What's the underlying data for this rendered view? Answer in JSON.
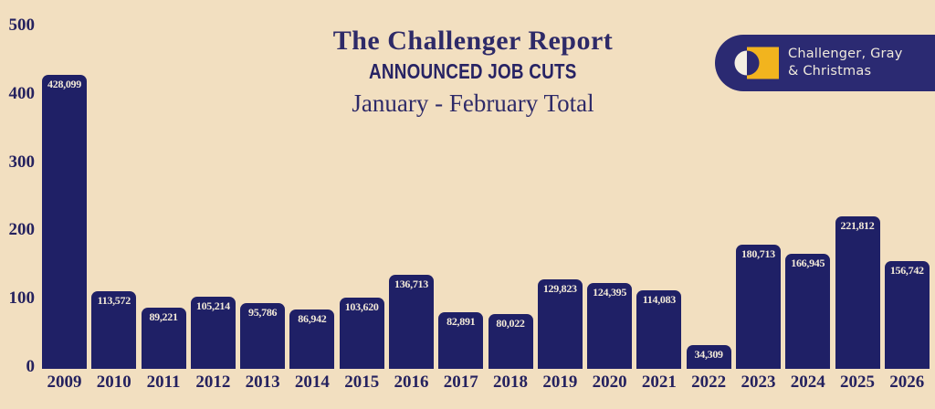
{
  "header": {
    "title": "The Challenger Report",
    "subtitle": "ANNOUNCED JOB CUTS",
    "period": "January - February Total"
  },
  "logo": {
    "company_line1": "Challenger, Gray",
    "company_line2": "& Christmas",
    "pill_color": "#2b2a72",
    "gold_color": "#f2b41e",
    "mark_white": "#f4efe2"
  },
  "colors": {
    "background": "#f2dfc0",
    "bar": "#1f2066",
    "heading_text": "#2e2a68",
    "axis_text": "#25225f",
    "value_label_text": "#f3ead8"
  },
  "chart_data": {
    "type": "bar",
    "title": "The Challenger Report — Announced Job Cuts — January - February Total",
    "categories": [
      "2009",
      "2010",
      "2011",
      "2012",
      "2013",
      "2014",
      "2015",
      "2016",
      "2017",
      "2018",
      "2019",
      "2020",
      "2021",
      "2022",
      "2023",
      "2024",
      "2025",
      "2026"
    ],
    "values": [
      428099,
      113572,
      89221,
      105214,
      95786,
      86942,
      103620,
      136713,
      82891,
      80022,
      129823,
      124395,
      114083,
      34309,
      180713,
      166945,
      221812,
      156742
    ],
    "value_labels": [
      "428,099",
      "113,572",
      "89,221",
      "105,214",
      "95,786",
      "86,942",
      "103,620",
      "136,713",
      "82,891",
      "80,022",
      "129,823",
      "124,395",
      "114,083",
      "34,309",
      "180,713",
      "166,945",
      "221,812",
      "156,742"
    ],
    "xlabel": "",
    "ylabel": "",
    "yticks": [
      0,
      100,
      200,
      300,
      400,
      500
    ],
    "ytick_labels": [
      "0",
      "100",
      "200",
      "300",
      "400",
      "500"
    ],
    "ylim": [
      0,
      500
    ],
    "y_unit": "thousands of job cuts",
    "grid": false,
    "legend": "none",
    "value_label_position": "inside-top"
  }
}
